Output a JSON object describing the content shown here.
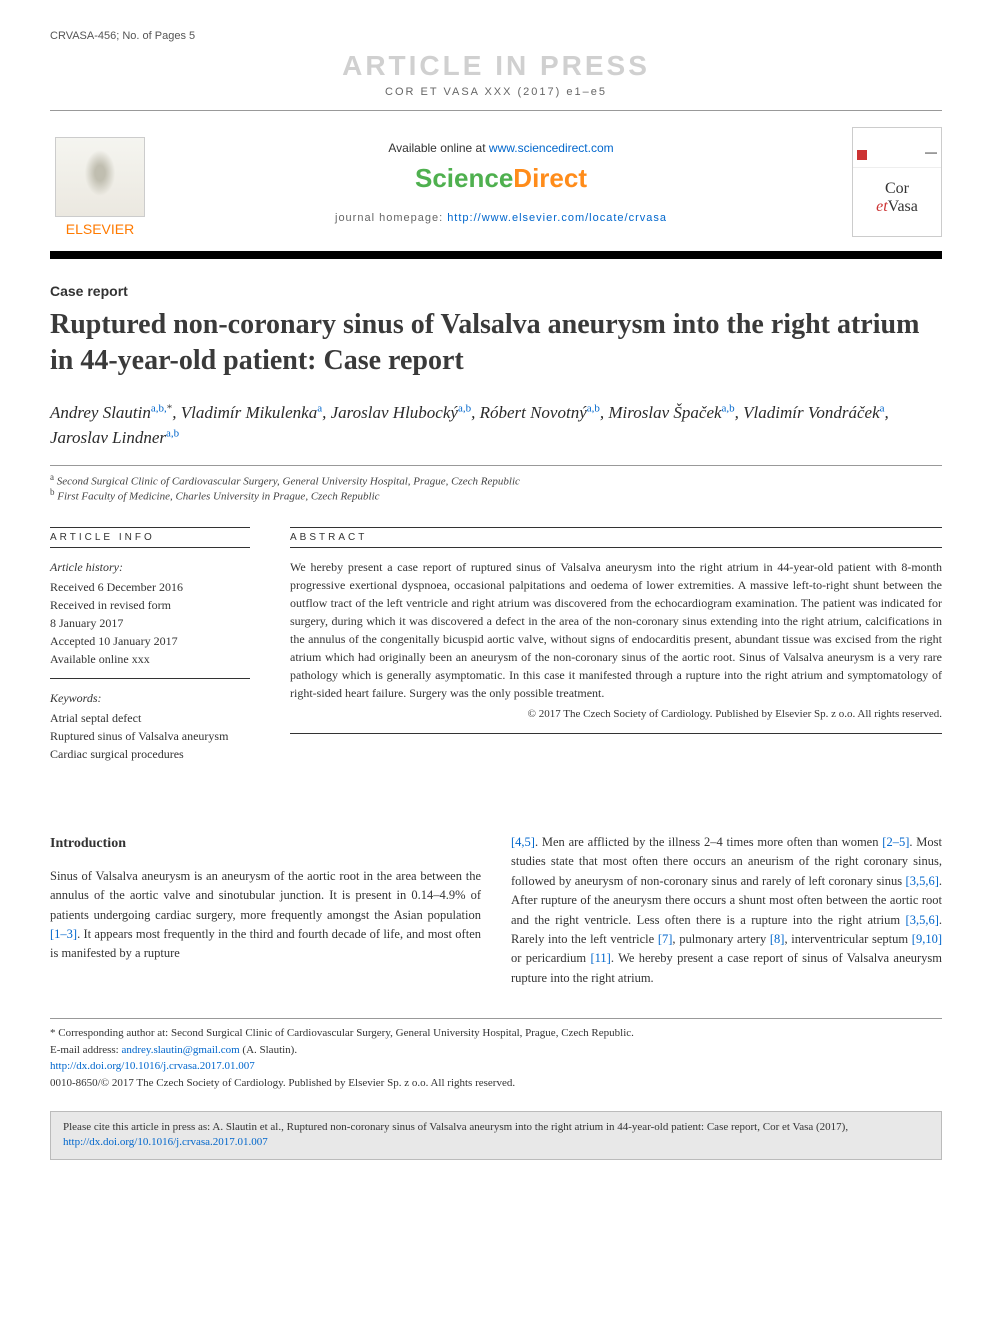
{
  "header": {
    "doc_id": "CRVASA-456; No. of Pages 5",
    "banner_text": "ARTICLE IN PRESS",
    "citation": "COR ET VASA XXX (2017) e1–e5"
  },
  "banner": {
    "available_text": "Available online at ",
    "available_link": "www.sciencedirect.com",
    "brand_part1": "Science",
    "brand_part2": "Direct",
    "homepage_label": "journal homepage: ",
    "homepage_link": "http://www.elsevier.com/locate/crvasa",
    "elsevier_label": "ELSEVIER",
    "cover_title1": "Cor",
    "cover_et": "et",
    "cover_title2": "Vasa"
  },
  "article": {
    "type_label": "Case report",
    "title": "Ruptured non-coronary sinus of Valsalva aneurysm into the right atrium in 44-year-old patient: Case report"
  },
  "authors": [
    {
      "name": "Andrey Slautin",
      "aff": "a,b,",
      "star": "*"
    },
    {
      "name": "Vladimír Mikulenka",
      "aff": "a"
    },
    {
      "name": "Jaroslav Hlubocký",
      "aff": "a,b"
    },
    {
      "name": "Róbert Novotný",
      "aff": "a,b"
    },
    {
      "name": "Miroslav Špaček",
      "aff": "a,b"
    },
    {
      "name": "Vladimír Vondráček",
      "aff": "a"
    },
    {
      "name": "Jaroslav Lindner",
      "aff": "a,b"
    }
  ],
  "affiliations": {
    "a": "Second Surgical Clinic of Cardiovascular Surgery, General University Hospital, Prague, Czech Republic",
    "b": "First Faculty of Medicine, Charles University in Prague, Czech Republic"
  },
  "article_info": {
    "heading": "ARTICLE INFO",
    "history_label": "Article history:",
    "history": [
      "Received 6 December 2016",
      "Received in revised form",
      "8 January 2017",
      "Accepted 10 January 2017",
      "Available online xxx"
    ],
    "keywords_label": "Keywords:",
    "keywords": [
      "Atrial septal defect",
      "Ruptured sinus of Valsalva aneurysm",
      "Cardiac surgical procedures"
    ]
  },
  "abstract": {
    "heading": "ABSTRACT",
    "text": "We hereby present a case report of ruptured sinus of Valsalva aneurysm into the right atrium in 44-year-old patient with 8-month progressive exertional dyspnoea, occasional palpitations and oedema of lower extremities. A massive left-to-right shunt between the outflow tract of the left ventricle and right atrium was discovered from the echocardiogram examination. The patient was indicated for surgery, during which it was discovered a defect in the area of the non-coronary sinus extending into the right atrium, calcifications in the annulus of the congenitally bicuspid aortic valve, without signs of endocarditis present, abundant tissue was excised from the right atrium which had originally been an aneurysm of the non-coronary sinus of the aortic root. Sinus of Valsalva aneurysm is a very rare pathology which is generally asymptomatic. In this case it manifested through a rupture into the right atrium and symptomatology of right-sided heart failure. Surgery was the only possible treatment.",
    "copyright": "© 2017 The Czech Society of Cardiology. Published by Elsevier Sp. z o.o. All rights reserved."
  },
  "body": {
    "intro_heading": "Introduction",
    "col1": "Sinus of Valsalva aneurysm is an aneurysm of the aortic root in the area between the annulus of the aortic valve and sinotubular junction. It is present in 0.14–4.9% of patients undergoing cardiac surgery, more frequently amongst the Asian population [1–3]. It appears most frequently in the third and fourth decade of life, and most often is manifested by a rupture",
    "col2": "[4,5]. Men are afflicted by the illness 2–4 times more often than women [2–5]. Most studies state that most often there occurs an aneurism of the right coronary sinus, followed by aneurysm of non-coronary sinus and rarely of left coronary sinus [3,5,6]. After rupture of the aneurysm there occurs a shunt most often between the aortic root and the right ventricle. Less often there is a rupture into the right atrium [3,5,6]. Rarely into the left ventricle [7], pulmonary artery [8], interventricular septum [9,10] or pericardium [11]. We hereby present a case report of sinus of Valsalva aneurysm rupture into the right atrium.",
    "refs_col1": [
      "[1–3]"
    ],
    "refs_col2": [
      "[4,5]",
      "[2–5]",
      "[3,5,6]",
      "[3,5,6]",
      "[7]",
      "[8]",
      "[9,10]",
      "[11]"
    ]
  },
  "footnotes": {
    "corresponding_label": "* Corresponding author at: ",
    "corresponding_text": "Second Surgical Clinic of Cardiovascular Surgery, General University Hospital, Prague, Czech Republic.",
    "email_label": "E-mail address: ",
    "email": "andrey.slautin@gmail.com",
    "email_author": " (A. Slautin).",
    "doi": "http://dx.doi.org/10.1016/j.crvasa.2017.01.007",
    "issn_copyright": "0010-8650/© 2017 The Czech Society of Cardiology. Published by Elsevier Sp. z o.o. All rights reserved."
  },
  "cite_box": {
    "prefix": "Please cite this article in press as: A. Slautin et al., Ruptured non-coronary sinus of Valsalva aneurysm into the right atrium in 44-year-old patient: Case report, Cor et Vasa (2017), ",
    "link": "http://dx.doi.org/10.1016/j.crvasa.2017.01.007"
  },
  "colors": {
    "link": "#0066cc",
    "elsevier_orange": "#ff7a00",
    "sd_green": "#4fb04f",
    "sd_orange": "#ff8c1a",
    "gray_banner": "#d0d0d0",
    "cite_bg": "#e8e8e8"
  }
}
